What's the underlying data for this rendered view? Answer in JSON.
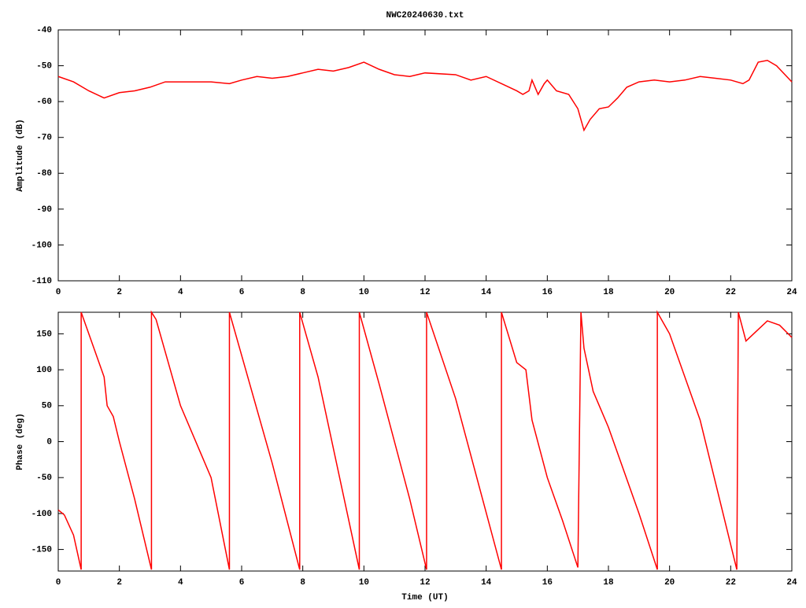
{
  "chart_data": [
    {
      "type": "line",
      "title": "NWC20240630.txt",
      "ylabel": "Amplitude (dB)",
      "color": "#ff0000",
      "xlim": [
        0,
        24
      ],
      "xticks": [
        0,
        2,
        4,
        6,
        8,
        10,
        12,
        14,
        16,
        18,
        20,
        22,
        24
      ],
      "ylim": [
        -110,
        -40
      ],
      "yticks": [
        -110,
        -100,
        -90,
        -80,
        -70,
        -60,
        -50,
        -40
      ],
      "x": [
        0,
        0.5,
        1,
        1.5,
        2,
        2.5,
        3,
        3.5,
        4,
        5,
        5.6,
        6,
        6.5,
        7,
        7.5,
        8,
        8.5,
        9,
        9.5,
        10,
        10.5,
        11,
        11.5,
        12,
        13,
        13.5,
        14,
        14.5,
        15,
        15.2,
        15.4,
        15.5,
        15.7,
        15.9,
        16,
        16.3,
        16.7,
        17,
        17.2,
        17.4,
        17.7,
        18,
        18.3,
        18.6,
        19,
        19.5,
        20,
        20.5,
        21,
        21.5,
        22,
        22.4,
        22.6,
        22.9,
        23.2,
        23.5,
        24
      ],
      "values": [
        -53,
        -54.5,
        -57,
        -59,
        -57.5,
        -57,
        -56,
        -54.5,
        -54.5,
        -54.5,
        -55,
        -54,
        -53,
        -53.5,
        -53,
        -52,
        -51,
        -51.5,
        -50.5,
        -49,
        -51,
        -52.5,
        -53,
        -52,
        -52.5,
        -54,
        -53,
        -55,
        -57,
        -58,
        -57,
        -54,
        -58,
        -55,
        -54,
        -57,
        -58,
        -62,
        -68,
        -65,
        -62,
        -61.5,
        -59,
        -56,
        -54.5,
        -54,
        -54.5,
        -54,
        -53,
        -53.5,
        -54,
        -55,
        -54,
        -49,
        -48.5,
        -50,
        -54.5
      ]
    },
    {
      "type": "line",
      "ylabel": "Phase (deg)",
      "xlabel": "Time (UT)",
      "color": "#ff0000",
      "xlim": [
        0,
        24
      ],
      "xticks": [
        0,
        2,
        4,
        6,
        8,
        10,
        12,
        14,
        16,
        18,
        20,
        22,
        24
      ],
      "ylim": [
        -180,
        180
      ],
      "yticks": [
        -150,
        -100,
        -50,
        0,
        50,
        100,
        150
      ],
      "x": [
        0,
        0.2,
        0.5,
        0.75,
        0.75,
        1,
        1.5,
        1.6,
        1.8,
        2,
        2.5,
        3.05,
        3.05,
        3.2,
        4,
        5,
        5.6,
        5.6,
        6,
        7,
        7.9,
        7.9,
        8.5,
        9.85,
        9.85,
        10.5,
        11.5,
        12.05,
        12.05,
        13,
        14.5,
        14.5,
        15,
        15.3,
        15.5,
        16,
        16.5,
        17,
        17.1,
        17.2,
        17.5,
        18,
        19,
        19.6,
        19.6,
        20,
        21,
        22.2,
        22.25,
        22.5,
        22.8,
        23.2,
        23.6,
        24
      ],
      "values": [
        -95,
        -102,
        -130,
        -178,
        180,
        150,
        90,
        50,
        35,
        0,
        -80,
        -178,
        180,
        170,
        50,
        -50,
        -178,
        180,
        120,
        -30,
        -178,
        180,
        90,
        -178,
        180,
        80,
        -80,
        -178,
        180,
        60,
        -178,
        180,
        110,
        100,
        30,
        -50,
        -110,
        -175,
        180,
        130,
        70,
        20,
        -100,
        -178,
        180,
        150,
        30,
        -178,
        180,
        140,
        152,
        168,
        162,
        145
      ]
    }
  ]
}
